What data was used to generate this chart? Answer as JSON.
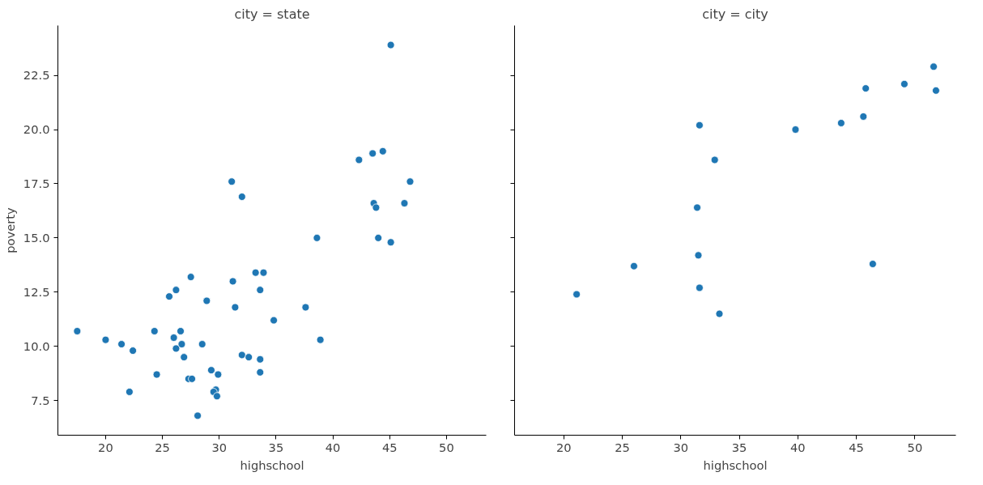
{
  "chart_data": [
    {
      "type": "scatter",
      "title": "city = state",
      "xlabel": "highschool",
      "ylabel": "poverty",
      "marker": "circle",
      "grid": false,
      "xlim": [
        15.8,
        53.5
      ],
      "ylim": [
        5.9,
        24.8
      ],
      "xticks": [
        20,
        25,
        30,
        35,
        40,
        45,
        50
      ],
      "yticks": [
        7.5,
        {
          "value": 10,
          "label": "10.0"
        },
        12.5,
        {
          "value": 15,
          "label": "15.0"
        },
        17.5,
        {
          "value": 20,
          "label": "20.0"
        },
        22.5
      ],
      "series": [
        {
          "color": "#1f77b4",
          "x": [
            45.1,
            31.1,
            32.0,
            42.3,
            43.5,
            44.4,
            46.8,
            43.6,
            43.8,
            46.3,
            38.6,
            44.0,
            45.1,
            17.5,
            20.0,
            21.4,
            22.4,
            22.1,
            24.3,
            24.5,
            25.6,
            26.2,
            27.5,
            28.9,
            31.2,
            31.4,
            33.2,
            33.9,
            33.6,
            34.8,
            26.0,
            26.6,
            26.2,
            26.7,
            26.9,
            28.5,
            27.3,
            27.6,
            28.1,
            29.3,
            29.9,
            29.7,
            29.5,
            29.8,
            32.0,
            32.6,
            33.6,
            33.6,
            37.6,
            38.9
          ],
          "values": [
            23.9,
            17.6,
            16.9,
            18.6,
            18.9,
            19.0,
            17.6,
            16.6,
            16.4,
            16.6,
            15.0,
            15.0,
            14.8,
            10.7,
            10.3,
            10.1,
            9.8,
            7.9,
            10.7,
            8.7,
            12.3,
            12.6,
            13.2,
            12.1,
            13.0,
            11.8,
            13.4,
            13.4,
            12.6,
            11.2,
            10.4,
            10.7,
            9.9,
            10.1,
            9.5,
            10.1,
            8.5,
            8.5,
            6.8,
            8.9,
            8.7,
            8.0,
            7.9,
            7.7,
            9.6,
            9.5,
            9.4,
            8.8,
            11.8,
            10.3
          ]
        }
      ]
    },
    {
      "type": "scatter",
      "title": "city = city",
      "xlabel": "highschool",
      "marker": "circle",
      "grid": false,
      "tick_labels": "x",
      "xlim": [
        15.8,
        53.5
      ],
      "ylim": [
        5.9,
        24.8
      ],
      "xticks": [
        20,
        25,
        30,
        35,
        40,
        45,
        50
      ],
      "yticks": [
        7.5,
        10,
        12.5,
        15,
        17.5,
        20,
        22.5
      ],
      "series": [
        {
          "color": "#1f77b4",
          "x": [
            51.6,
            49.1,
            51.8,
            45.8,
            45.6,
            43.7,
            39.8,
            31.6,
            32.9,
            31.4,
            31.5,
            31.6,
            33.3,
            26.0,
            21.1,
            46.4
          ],
          "values": [
            22.9,
            22.1,
            21.8,
            21.9,
            20.6,
            20.3,
            20.0,
            20.2,
            18.6,
            16.4,
            14.2,
            12.7,
            11.5,
            13.7,
            12.4,
            13.8
          ]
        }
      ]
    }
  ]
}
